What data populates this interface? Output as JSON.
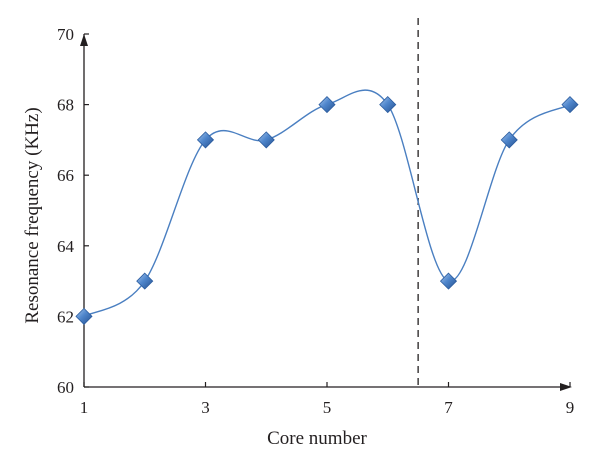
{
  "chart_data": {
    "type": "line",
    "xlabel": "Core number",
    "ylabel": "Resonance frequency (KHz)",
    "xlim": [
      1,
      9
    ],
    "ylim": [
      60,
      70
    ],
    "x_ticks": [
      "1",
      "3",
      "5",
      "7",
      "9"
    ],
    "y_ticks": [
      "60",
      "62",
      "64",
      "66",
      "68",
      "70"
    ],
    "grid": false,
    "marker": "diamond",
    "colors": {
      "line": "#4a7fc1",
      "marker": "#3f74b8",
      "axis": "#231f20"
    },
    "series": [
      {
        "x": [
          1,
          2,
          3,
          4,
          5,
          6,
          7,
          8,
          9
        ],
        "y": [
          62,
          63,
          67,
          67,
          68,
          68,
          63,
          67,
          68
        ]
      }
    ],
    "vertical_dashed_line_x": 6.5
  }
}
